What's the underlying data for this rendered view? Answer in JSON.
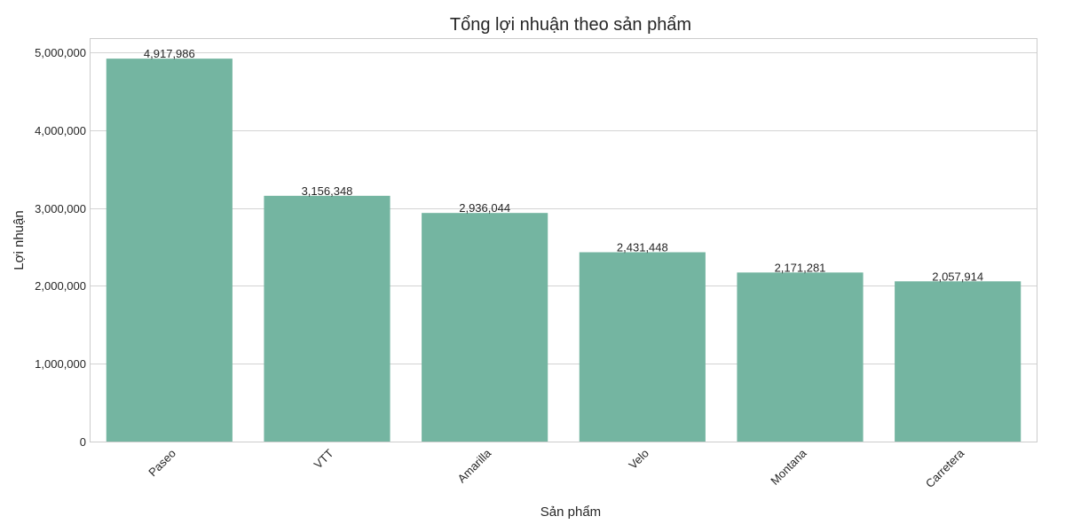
{
  "chart_data": {
    "type": "bar",
    "title": "Tổng lợi nhuận theo sản phẩm",
    "xlabel": "Sản phẩm",
    "ylabel": "Lợi nhuận",
    "categories": [
      "Paseo",
      "VTT",
      "Amarilla",
      "Velo",
      "Montana",
      "Carretera"
    ],
    "values": [
      4917986,
      3156348,
      2936044,
      2431448,
      2171281,
      2057914
    ],
    "value_labels": [
      "4,917,986",
      "3,156,348",
      "2,936,044",
      "2,431,448",
      "2,171,281",
      "2,057,914"
    ],
    "ylim": [
      0,
      5170000
    ],
    "yticks": [
      0,
      1000000,
      2000000,
      3000000,
      4000000,
      5000000
    ],
    "ytick_labels": [
      "0",
      "1,000,000",
      "2,000,000",
      "3,000,000",
      "4,000,000",
      "5,000,000"
    ],
    "grid": true,
    "bar_color": "#74b5a1"
  }
}
